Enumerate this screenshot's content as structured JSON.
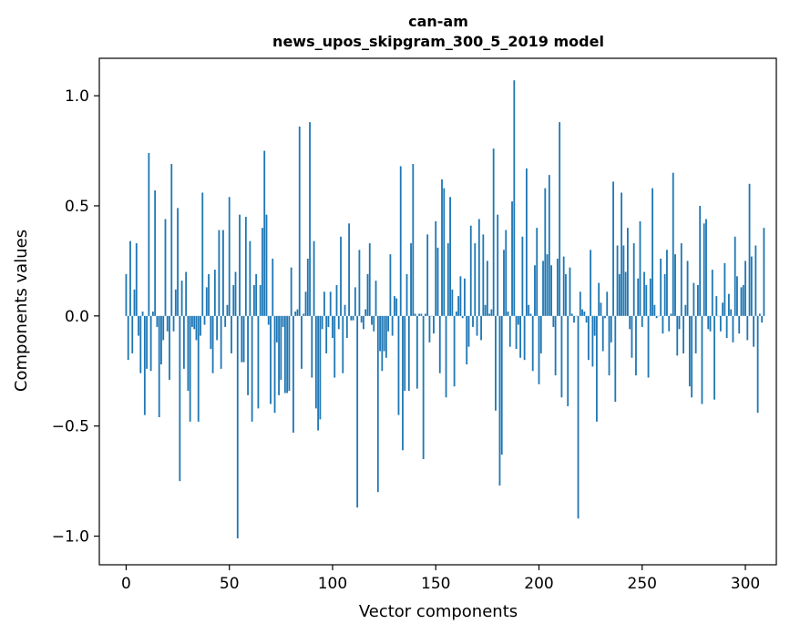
{
  "chart_data": {
    "type": "bar",
    "title": "can-am",
    "subtitle": "news_upos_skipgram_300_5_2019 model",
    "xlabel": "Vector components",
    "ylabel": "Components values",
    "xlim": [
      -13,
      315
    ],
    "ylim": [
      -1.13,
      1.17
    ],
    "xticks": [
      0,
      50,
      100,
      150,
      200,
      250,
      300
    ],
    "xtick_labels": [
      "0",
      "50",
      "100",
      "150",
      "200",
      "250",
      "300"
    ],
    "yticks": [
      -1.0,
      -0.5,
      0.0,
      0.5,
      1.0
    ],
    "ytick_labels": [
      "−1.0",
      "−0.5",
      "0.0",
      "0.5",
      "1.0"
    ],
    "grid": false,
    "bar_color": "#1f77b4",
    "values": [
      0.19,
      -0.2,
      0.34,
      -0.17,
      0.12,
      0.33,
      -0.09,
      -0.26,
      0.02,
      -0.45,
      -0.24,
      0.74,
      -0.25,
      0.02,
      0.57,
      -0.05,
      -0.46,
      -0.22,
      -0.11,
      0.44,
      -0.07,
      -0.29,
      0.69,
      -0.07,
      0.12,
      0.49,
      -0.75,
      0.16,
      -0.24,
      0.2,
      -0.34,
      -0.48,
      -0.05,
      -0.06,
      -0.11,
      -0.48,
      -0.09,
      0.56,
      -0.04,
      0.13,
      0.19,
      -0.15,
      -0.26,
      0.21,
      -0.11,
      0.39,
      -0.24,
      0.39,
      -0.05,
      0.05,
      0.54,
      -0.17,
      0.14,
      0.2,
      -1.01,
      0.46,
      -0.21,
      -0.21,
      0.45,
      -0.36,
      0.34,
      -0.48,
      0.14,
      0.19,
      -0.42,
      0.14,
      0.4,
      0.75,
      0.46,
      -0.04,
      -0.4,
      0.26,
      -0.44,
      -0.12,
      -0.36,
      -0.29,
      -0.05,
      -0.35,
      -0.35,
      -0.34,
      0.22,
      -0.53,
      0.02,
      0.03,
      0.86,
      -0.24,
      0.01,
      0.11,
      0.26,
      0.88,
      -0.28,
      0.34,
      -0.42,
      -0.52,
      -0.47,
      -0.06,
      0.11,
      -0.17,
      -0.05,
      0.11,
      -0.1,
      -0.28,
      0.14,
      -0.06,
      0.36,
      -0.26,
      0.05,
      -0.1,
      0.42,
      -0.02,
      -0.02,
      0.13,
      -0.87,
      0.3,
      -0.03,
      -0.06,
      0.03,
      0.19,
      0.33,
      -0.04,
      -0.07,
      0.16,
      -0.8,
      -0.16,
      -0.25,
      -0.16,
      -0.19,
      -0.07,
      0.28,
      -0.09,
      0.09,
      0.08,
      -0.45,
      0.68,
      -0.61,
      -0.34,
      0.19,
      -0.34,
      0.33,
      0.69,
      0.01,
      -0.33,
      0.01,
      0.01,
      -0.65,
      0.01,
      0.37,
      -0.12,
      0.0,
      -0.08,
      0.43,
      0.31,
      -0.26,
      0.62,
      0.58,
      -0.37,
      0.33,
      0.54,
      0.12,
      -0.32,
      0.02,
      0.09,
      0.18,
      -0.01,
      0.17,
      -0.22,
      -0.14,
      0.41,
      -0.05,
      0.33,
      -0.09,
      0.44,
      -0.11,
      0.37,
      0.05,
      0.25,
      0.01,
      0.03,
      0.76,
      -0.43,
      0.46,
      -0.77,
      -0.63,
      0.3,
      0.39,
      0.02,
      -0.14,
      0.52,
      1.07,
      -0.15,
      -0.04,
      -0.19,
      0.36,
      -0.2,
      0.67,
      0.05,
      0.01,
      -0.25,
      0.23,
      0.4,
      -0.31,
      -0.17,
      0.25,
      0.58,
      0.28,
      0.64,
      0.23,
      -0.05,
      -0.27,
      0.26,
      0.88,
      -0.37,
      0.27,
      0.19,
      -0.41,
      0.22,
      0.01,
      -0.03,
      0.0,
      -0.92,
      0.11,
      0.03,
      0.02,
      -0.03,
      -0.2,
      0.3,
      -0.23,
      -0.09,
      -0.48,
      0.15,
      0.06,
      -0.16,
      -0.01,
      0.11,
      -0.27,
      -0.12,
      0.61,
      -0.39,
      0.32,
      0.19,
      0.56,
      0.32,
      0.2,
      0.4,
      -0.06,
      -0.19,
      0.33,
      -0.27,
      0.17,
      0.43,
      -0.05,
      0.2,
      0.14,
      -0.28,
      0.17,
      0.58,
      0.05,
      -0.01,
      0.0,
      0.26,
      -0.08,
      0.19,
      0.3,
      -0.07,
      0.01,
      0.65,
      0.28,
      -0.18,
      -0.06,
      0.33,
      -0.17,
      0.05,
      0.25,
      -0.32,
      -0.37,
      0.15,
      -0.17,
      0.14,
      0.5,
      -0.4,
      0.42,
      0.44,
      -0.06,
      -0.07,
      0.21,
      -0.38,
      0.09,
      0.0,
      -0.07,
      0.06,
      0.24,
      -0.1,
      0.1,
      0.03,
      -0.12,
      0.36,
      0.18,
      -0.08,
      0.13,
      0.14,
      0.25,
      -0.11,
      0.6,
      0.27,
      -0.14,
      0.32,
      -0.44,
      0.01,
      -0.03,
      0.4
    ]
  }
}
